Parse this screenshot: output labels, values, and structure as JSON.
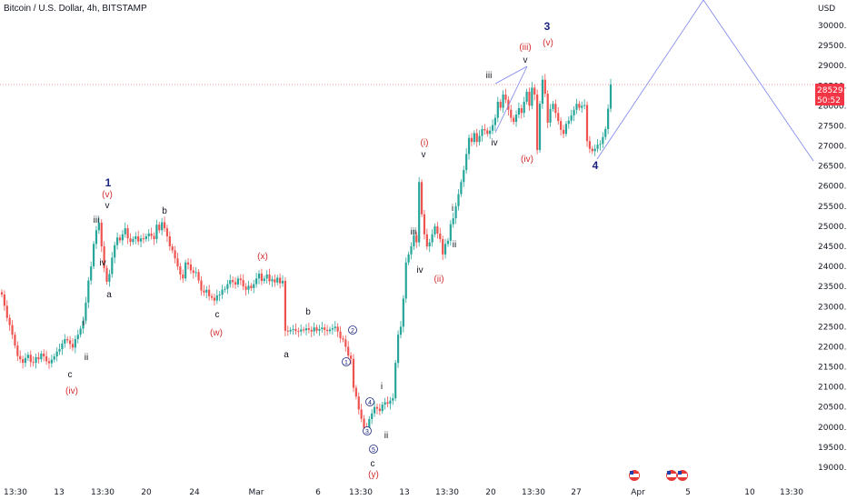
{
  "header": {
    "title": "Bitcoin / U.S. Dollar, 4h, BITSTAMP"
  },
  "price_axis": {
    "currency": "USD",
    "ticks": [
      "30000.00",
      "29500.00",
      "29000.00",
      "28500.00",
      "28000.00",
      "27500.00",
      "27000.00",
      "26500.00",
      "26000.00",
      "25500.00",
      "25000.00",
      "24500.00",
      "24000.00",
      "23500.00",
      "23000.00",
      "22500.00",
      "22000.00",
      "21500.00",
      "21000.00",
      "20500.00",
      "20000.00",
      "19500.00",
      "19000.00"
    ],
    "last_price": "28529.00",
    "countdown": "50:52"
  },
  "time_axis": {
    "ticks": [
      "13:30",
      "13",
      "13:30",
      "20",
      "24",
      "Mar",
      "6",
      "13:30",
      "13",
      "13:30",
      "20",
      "13:30",
      "27",
      "Apr",
      "5",
      "10",
      "13:30"
    ]
  },
  "colors": {
    "up": "#26a69a",
    "down": "#ef5350",
    "count_red": "#d32f2f",
    "count_blue": "#1a237e",
    "count_black": "#131722",
    "projection": "#7b83eb",
    "price_line": "#f23645"
  },
  "chart_data": {
    "type": "candlestick",
    "title": "Bitcoin / U.S. Dollar, 4h, BITSTAMP",
    "ylim": [
      18700,
      30700
    ],
    "y_unit": "USD",
    "price_close": [
      23300,
      23020,
      22720,
      22540,
      22300,
      22030,
      21770,
      21690,
      21600,
      21720,
      21800,
      21620,
      21600,
      21740,
      21690,
      21830,
      21760,
      21640,
      21590,
      21680,
      21760,
      21880,
      21940,
      22080,
      22190,
      22160,
      22070,
      21980,
      22190,
      22300,
      22450,
      22650,
      23100,
      23650,
      24000,
      24560,
      24900,
      25090,
      24500,
      23960,
      23620,
      23810,
      24220,
      24530,
      24720,
      24650,
      24800,
      24950,
      24700,
      24610,
      24680,
      24750,
      24620,
      24700,
      24680,
      24750,
      24820,
      24760,
      24680,
      25040,
      24900,
      25100,
      24950,
      24750,
      24500,
      24400,
      24200,
      24000,
      23800,
      23700,
      24100,
      24050,
      23900,
      23840,
      23860,
      23650,
      23400,
      23350,
      23420,
      23260,
      23220,
      23150,
      23280,
      23300,
      23420,
      23440,
      23560,
      23660,
      23610,
      23550,
      23700,
      23660,
      23500,
      23420,
      23520,
      23460,
      23560,
      23700,
      23820,
      23640,
      23700,
      23800,
      23630,
      23680,
      23600,
      23720,
      23580,
      23640,
      22400,
      22380,
      22420,
      22440,
      22390,
      22380,
      22430,
      22410,
      22460,
      22420,
      22380,
      22480,
      22400,
      22440,
      22480,
      22420,
      22390,
      22430,
      22460,
      22500,
      22380,
      22210,
      22180,
      22000,
      21780,
      21700,
      20980,
      20760,
      20440,
      20210,
      19980,
      19960,
      20200,
      20340,
      20500,
      20460,
      20400,
      20560,
      20620,
      20580,
      20660,
      20720,
      21600,
      22300,
      22500,
      23200,
      24100,
      24300,
      24500,
      24780,
      24600,
      26100,
      25300,
      24800,
      24500,
      24600,
      24800,
      25000,
      24820,
      24680,
      24300,
      24560,
      24640,
      25050,
      25200,
      25500,
      25800,
      26100,
      26400,
      26800,
      27200,
      27100,
      27320,
      27100,
      27250,
      27420,
      27390,
      27300,
      27380,
      27520,
      27700,
      28100,
      27950,
      28280,
      28150,
      27900,
      27700,
      27600,
      27780,
      27940,
      27820,
      28100,
      28350,
      28000,
      28450,
      28280,
      26900,
      28050,
      28650,
      28300,
      27580,
      27920,
      28050,
      27820,
      27620,
      27400,
      27300,
      27550,
      27630,
      27760,
      27900,
      28050,
      27950,
      28000,
      28020,
      27120,
      26930,
      26870,
      26930,
      27030,
      27050,
      27220,
      27420,
      27930,
      28529
    ]
  },
  "wave_labels": {
    "w1": "1",
    "w3": "3",
    "w4": "4",
    "i": "i",
    "ii": "ii",
    "iii": "iii",
    "iv": "iv",
    "v": "v",
    "a": "a",
    "b": "b",
    "c": "c",
    "p_i": "(i)",
    "p_ii": "(ii)",
    "p_iii": "(iii)",
    "p_iv": "(iv)",
    "p_v": "(v)",
    "p_w": "(w)",
    "p_x": "(x)",
    "p_y": "(y)",
    "c1": "1",
    "c2": "2",
    "c3": "3",
    "c4": "4",
    "c5": "5"
  }
}
